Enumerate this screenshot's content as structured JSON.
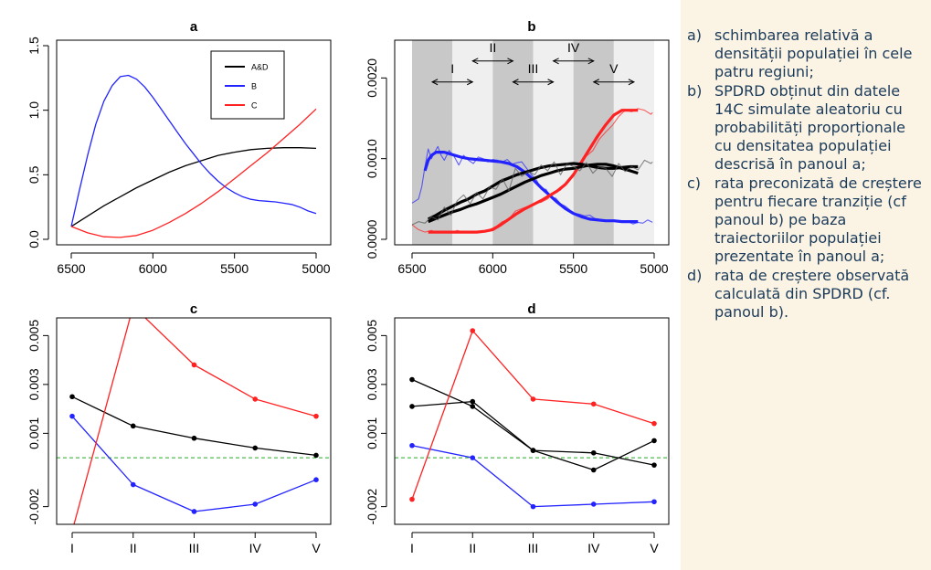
{
  "caption": {
    "items": [
      {
        "label": "a)",
        "text": "schimbarea relativă a densității populației în cele patru regiuni;"
      },
      {
        "label": "b)",
        "text": "SPDRD obținut din datele 14C simulate aleatoriu cu probabilități proporționale cu densitatea populației descrisă în panoul a;"
      },
      {
        "label": "c)",
        "text": "rata preconizată de creștere pentru fiecare tranziție (cf panoul b) pe baza traiectoriilor populației prezentate în panoul a;"
      },
      {
        "label": "d)",
        "text": "rata de creștere observată calculată din SPDRD (cf. panoul b)."
      }
    ]
  },
  "colors": {
    "black": "#000000",
    "blue": "#2323ff",
    "red": "#ff2222",
    "green": "#22aa22",
    "dark_band": "#c8c8c8",
    "light_band": "#efefef"
  },
  "chart_data": [
    {
      "id": "a",
      "type": "line",
      "title": "a",
      "xlim": [
        6500,
        5000
      ],
      "ylim": [
        0,
        1.5
      ],
      "xticks": [
        6500,
        6000,
        5500,
        5000
      ],
      "yticks": [
        0.0,
        0.5,
        1.0,
        1.5
      ],
      "xtick_labels": [
        "6500",
        "6000",
        "5500",
        "5000"
      ],
      "ytick_labels": [
        "0.0",
        "0.5",
        "1.0",
        "1.5"
      ],
      "legend": {
        "placement": "top-right",
        "entries": [
          "A&D",
          "B",
          "C"
        ]
      },
      "series": [
        {
          "name": "A&D",
          "color": "#000000",
          "x": [
            6500,
            6400,
            6300,
            6200,
            6100,
            6000,
            5900,
            5800,
            5700,
            5600,
            5500,
            5400,
            5300,
            5200,
            5100,
            5000
          ],
          "y": [
            0.1,
            0.18,
            0.26,
            0.33,
            0.4,
            0.46,
            0.52,
            0.57,
            0.61,
            0.65,
            0.675,
            0.695,
            0.705,
            0.71,
            0.71,
            0.705
          ]
        },
        {
          "name": "B",
          "color": "#2323ff",
          "x": [
            6500,
            6450,
            6400,
            6350,
            6300,
            6250,
            6200,
            6150,
            6100,
            6050,
            6000,
            5950,
            5900,
            5850,
            5800,
            5750,
            5700,
            5650,
            5600,
            5550,
            5500,
            5450,
            5400,
            5350,
            5300,
            5250,
            5200,
            5150,
            5100,
            5050,
            5000
          ],
          "y": [
            0.1,
            0.38,
            0.65,
            0.89,
            1.07,
            1.19,
            1.26,
            1.27,
            1.24,
            1.18,
            1.1,
            1.01,
            0.92,
            0.83,
            0.74,
            0.66,
            0.58,
            0.51,
            0.45,
            0.4,
            0.36,
            0.33,
            0.31,
            0.3,
            0.295,
            0.29,
            0.28,
            0.27,
            0.25,
            0.22,
            0.2
          ]
        },
        {
          "name": "C",
          "color": "#ff2222",
          "x": [
            6500,
            6400,
            6300,
            6200,
            6100,
            6000,
            5900,
            5800,
            5700,
            5600,
            5500,
            5400,
            5300,
            5200,
            5100,
            5000
          ],
          "y": [
            0.1,
            0.05,
            0.02,
            0.015,
            0.03,
            0.07,
            0.13,
            0.2,
            0.28,
            0.37,
            0.47,
            0.57,
            0.67,
            0.78,
            0.89,
            1.01
          ]
        }
      ]
    },
    {
      "id": "b",
      "type": "line",
      "title": "b",
      "xlim": [
        6500,
        5000
      ],
      "ylim": [
        0,
        0.0024
      ],
      "xticks": [
        6500,
        6000,
        5500,
        5000
      ],
      "yticks": [
        0.0,
        0.001,
        0.002
      ],
      "xtick_labels": [
        "6500",
        "6000",
        "5500",
        "5000"
      ],
      "ytick_labels": [
        "0.0000",
        "0.0010",
        "0.0020"
      ],
      "bands": [
        {
          "from": 6500,
          "to": 6250,
          "shade": "dark"
        },
        {
          "from": 6250,
          "to": 6000,
          "shade": "light"
        },
        {
          "from": 6000,
          "to": 5750,
          "shade": "dark"
        },
        {
          "from": 5750,
          "to": 5500,
          "shade": "light"
        },
        {
          "from": 5500,
          "to": 5250,
          "shade": "dark"
        },
        {
          "from": 5250,
          "to": 5000,
          "shade": "light"
        }
      ],
      "transitions": [
        {
          "label": "I",
          "from": 6375,
          "to": 6125,
          "y": 0.00195
        },
        {
          "label": "II",
          "from": 6125,
          "to": 5875,
          "y": 0.00221
        },
        {
          "label": "III",
          "from": 5875,
          "to": 5625,
          "y": 0.00195
        },
        {
          "label": "IV",
          "from": 5625,
          "to": 5375,
          "y": 0.00221
        },
        {
          "label": "V",
          "from": 5375,
          "to": 5125,
          "y": 0.00195
        }
      ],
      "series": [
        {
          "name": "",
          "color": "#2323ff",
          "role": "smooth",
          "x": [
            6420,
            6400,
            6380,
            6350,
            6300,
            6250,
            6200,
            6150,
            6100,
            6050,
            6000,
            5950,
            5900,
            5850,
            5800,
            5750,
            5700,
            5650,
            5600,
            5550,
            5500,
            5450,
            5400,
            5350,
            5300,
            5250,
            5200,
            5150,
            5100
          ],
          "y": [
            0.00085,
            0.00098,
            0.00104,
            0.00108,
            0.00108,
            0.00105,
            0.00102,
            0.001,
            0.00099,
            0.00098,
            0.00097,
            0.00096,
            0.00094,
            0.0009,
            0.00083,
            0.00074,
            0.00064,
            0.00055,
            0.00046,
            0.00038,
            0.00032,
            0.00028,
            0.00025,
            0.00024,
            0.00023,
            0.00023,
            0.00022,
            0.00022,
            0.00022
          ]
        },
        {
          "name": "",
          "color": "#2323ff",
          "role": "raw",
          "x": [
            6500,
            6460,
            6440,
            6420,
            6400,
            6380,
            6360,
            6340,
            6320,
            6300,
            6270,
            6240,
            6210,
            6180,
            6150,
            6120,
            6090,
            6060,
            6030,
            6000,
            5970,
            5940,
            5910,
            5880,
            5850,
            5820,
            5790,
            5760,
            5730,
            5700,
            5670,
            5640,
            5610,
            5580,
            5550,
            5520,
            5490,
            5460,
            5430,
            5400,
            5370,
            5340,
            5310,
            5280,
            5250,
            5220,
            5190,
            5160,
            5130,
            5100,
            5070,
            5040,
            5010
          ],
          "y": [
            0.00045,
            0.0005,
            0.00065,
            0.0009,
            0.00112,
            0.001,
            0.00108,
            0.00115,
            0.00104,
            0.00098,
            0.0011,
            0.00103,
            0.00092,
            0.00104,
            0.00098,
            0.00094,
            0.00102,
            0.001,
            0.00096,
            0.00099,
            0.00098,
            0.00096,
            0.00099,
            0.00093,
            0.00095,
            0.00096,
            0.00088,
            0.0008,
            0.00074,
            0.00062,
            0.00062,
            0.00052,
            0.00051,
            0.00044,
            0.00041,
            0.00036,
            0.00032,
            0.00031,
            0.00029,
            0.0003,
            0.00026,
            0.00025,
            0.00024,
            0.00022,
            0.00024,
            0.00023,
            0.00021,
            0.00022,
            0.00019,
            0.00021,
            0.0002,
            0.00024,
            0.00021
          ]
        },
        {
          "name": "",
          "color": "#ff2222",
          "role": "smooth",
          "x": [
            6400,
            6350,
            6300,
            6250,
            6200,
            6150,
            6100,
            6050,
            6000,
            5950,
            5900,
            5850,
            5800,
            5750,
            5700,
            5650,
            5600,
            5550,
            5500,
            5450,
            5400,
            5350,
            5300,
            5250,
            5200,
            5150,
            5100
          ],
          "y": [
            9e-05,
            9e-05,
            9e-05,
            9e-05,
            9e-05,
            9e-05,
            9e-05,
            0.0001,
            0.00012,
            0.00018,
            0.00025,
            0.00032,
            0.00038,
            0.00043,
            0.00048,
            0.00054,
            0.0006,
            0.00068,
            0.0008,
            0.00096,
            0.00112,
            0.00128,
            0.00142,
            0.00154,
            0.0016,
            0.0016,
            0.0016
          ]
        },
        {
          "name": "",
          "color": "#ff2222",
          "role": "raw",
          "x": [
            6500,
            6460,
            6420,
            6380,
            6340,
            6300,
            6260,
            6220,
            6180,
            6140,
            6100,
            6060,
            6020,
            5980,
            5940,
            5900,
            5860,
            5820,
            5780,
            5740,
            5700,
            5660,
            5620,
            5580,
            5540,
            5500,
            5460,
            5420,
            5380,
            5340,
            5300,
            5260,
            5220,
            5180,
            5140,
            5100,
            5060,
            5020,
            5010
          ],
          "y": [
            0.00018,
            0.00012,
            9e-05,
            0.00011,
            8e-05,
            0.0001,
            8e-05,
            0.00011,
            9e-05,
            8e-05,
            0.0001,
            9e-05,
            0.00012,
            0.00016,
            0.00022,
            0.00025,
            0.00035,
            0.00038,
            0.00041,
            0.00045,
            0.00046,
            0.0005,
            0.00058,
            0.00061,
            0.00072,
            0.00082,
            0.0009,
            0.00103,
            0.0011,
            0.00124,
            0.00133,
            0.00141,
            0.00152,
            0.0016,
            0.00158,
            0.00162,
            0.0016,
            0.00155,
            0.00157
          ]
        },
        {
          "name": "",
          "color": "#000000",
          "role": "smooth-1",
          "x": [
            6400,
            6350,
            6300,
            6250,
            6200,
            6150,
            6100,
            6050,
            6000,
            5950,
            5900,
            5850,
            5800,
            5750,
            5700,
            5650,
            5600,
            5550,
            5500,
            5450,
            5400,
            5350,
            5300,
            5250,
            5200,
            5150,
            5100
          ],
          "y": [
            0.00025,
            0.0003,
            0.00036,
            0.00041,
            0.00046,
            0.0005,
            0.00056,
            0.0006,
            0.00066,
            0.00072,
            0.00076,
            0.0008,
            0.00083,
            0.00086,
            0.00089,
            0.00091,
            0.00092,
            0.00093,
            0.00094,
            0.00093,
            0.00091,
            0.00089,
            0.00088,
            0.00088,
            0.00089,
            0.0009,
            0.0009
          ]
        },
        {
          "name": "",
          "color": "#000000",
          "role": "smooth-2",
          "x": [
            6400,
            6350,
            6300,
            6250,
            6200,
            6150,
            6100,
            6050,
            6000,
            5950,
            5900,
            5850,
            5800,
            5750,
            5700,
            5650,
            5600,
            5550,
            5500,
            5450,
            5400,
            5350,
            5300,
            5250,
            5200,
            5150,
            5100
          ],
          "y": [
            0.00022,
            0.00026,
            0.0003,
            0.00034,
            0.00037,
            0.00041,
            0.00044,
            0.00048,
            0.00052,
            0.00056,
            0.00061,
            0.00066,
            0.00071,
            0.00075,
            0.00079,
            0.00082,
            0.00085,
            0.00087,
            0.00088,
            0.0009,
            0.00092,
            0.00093,
            0.00093,
            0.00091,
            0.00088,
            0.00085,
            0.00082
          ]
        },
        {
          "name": "",
          "color": "#555555",
          "role": "raw",
          "x": [
            6500,
            6460,
            6420,
            6380,
            6340,
            6300,
            6260,
            6220,
            6180,
            6140,
            6100,
            6060,
            6020,
            5980,
            5940,
            5900,
            5860,
            5820,
            5780,
            5740,
            5700,
            5660,
            5620,
            5580,
            5540,
            5500,
            5460,
            5420,
            5380,
            5340,
            5300,
            5260,
            5220,
            5180,
            5140,
            5100,
            5060,
            5020,
            5010
          ],
          "y": [
            0.00018,
            0.00022,
            0.0002,
            0.00028,
            0.00024,
            0.0004,
            0.0003,
            0.00048,
            0.00055,
            0.00044,
            0.00058,
            0.0005,
            0.00065,
            0.00062,
            0.00075,
            0.0006,
            0.00088,
            0.00078,
            0.00084,
            0.0008,
            0.00092,
            0.00085,
            0.00096,
            0.0008,
            0.00094,
            0.0009,
            0.00085,
            0.00095,
            0.00082,
            0.0009,
            0.00088,
            0.00078,
            0.00094,
            0.00084,
            0.0009,
            0.00086,
            0.00098,
            0.00094,
            0.00096
          ]
        }
      ]
    },
    {
      "id": "c",
      "type": "line",
      "title": "c",
      "categories": [
        "I",
        "II",
        "III",
        "IV",
        "V"
      ],
      "ylim": [
        -0.0025,
        0.0055
      ],
      "yticks": [
        -0.002,
        0.001,
        0.003,
        0.005
      ],
      "ytick_labels": [
        "-0.002",
        "0.001",
        "0.003",
        "0.005"
      ],
      "reference_line": {
        "y": 0.0,
        "color": "#22aa22",
        "style": "dashed"
      },
      "series": [
        {
          "name": "",
          "color": "#000000",
          "values": [
            0.0025,
            0.0013,
            0.0008,
            0.0004,
            0.0001
          ]
        },
        {
          "name": "",
          "color": "#2323ff",
          "values": [
            0.0017,
            -0.0011,
            -0.0022,
            -0.0019,
            -0.0009
          ]
        },
        {
          "name": "",
          "color": "#ff2222",
          "values": [
            -0.003,
            0.0062,
            0.0038,
            0.0024,
            0.0017
          ]
        }
      ]
    },
    {
      "id": "d",
      "type": "line",
      "title": "d",
      "categories": [
        "I",
        "II",
        "III",
        "IV",
        "V"
      ],
      "ylim": [
        -0.0025,
        0.0055
      ],
      "yticks": [
        -0.002,
        0.001,
        0.003,
        0.005
      ],
      "ytick_labels": [
        "-0.002",
        "0.001",
        "0.003",
        "0.005"
      ],
      "reference_line": {
        "y": 0.0,
        "color": "#22aa22",
        "style": "dashed"
      },
      "series": [
        {
          "name": "",
          "color": "#000000",
          "values": [
            0.0032,
            0.0021,
            0.0003,
            -0.0005,
            0.0007
          ]
        },
        {
          "name": "",
          "color": "#000000",
          "values": [
            0.0021,
            0.0023,
            0.0003,
            0.0002,
            -0.0003
          ]
        },
        {
          "name": "",
          "color": "#2323ff",
          "values": [
            0.0005,
            0.0,
            -0.002,
            -0.0019,
            -0.0018
          ]
        },
        {
          "name": "",
          "color": "#ff2222",
          "values": [
            -0.0017,
            0.0052,
            0.0024,
            0.0022,
            0.0014
          ]
        }
      ]
    }
  ]
}
